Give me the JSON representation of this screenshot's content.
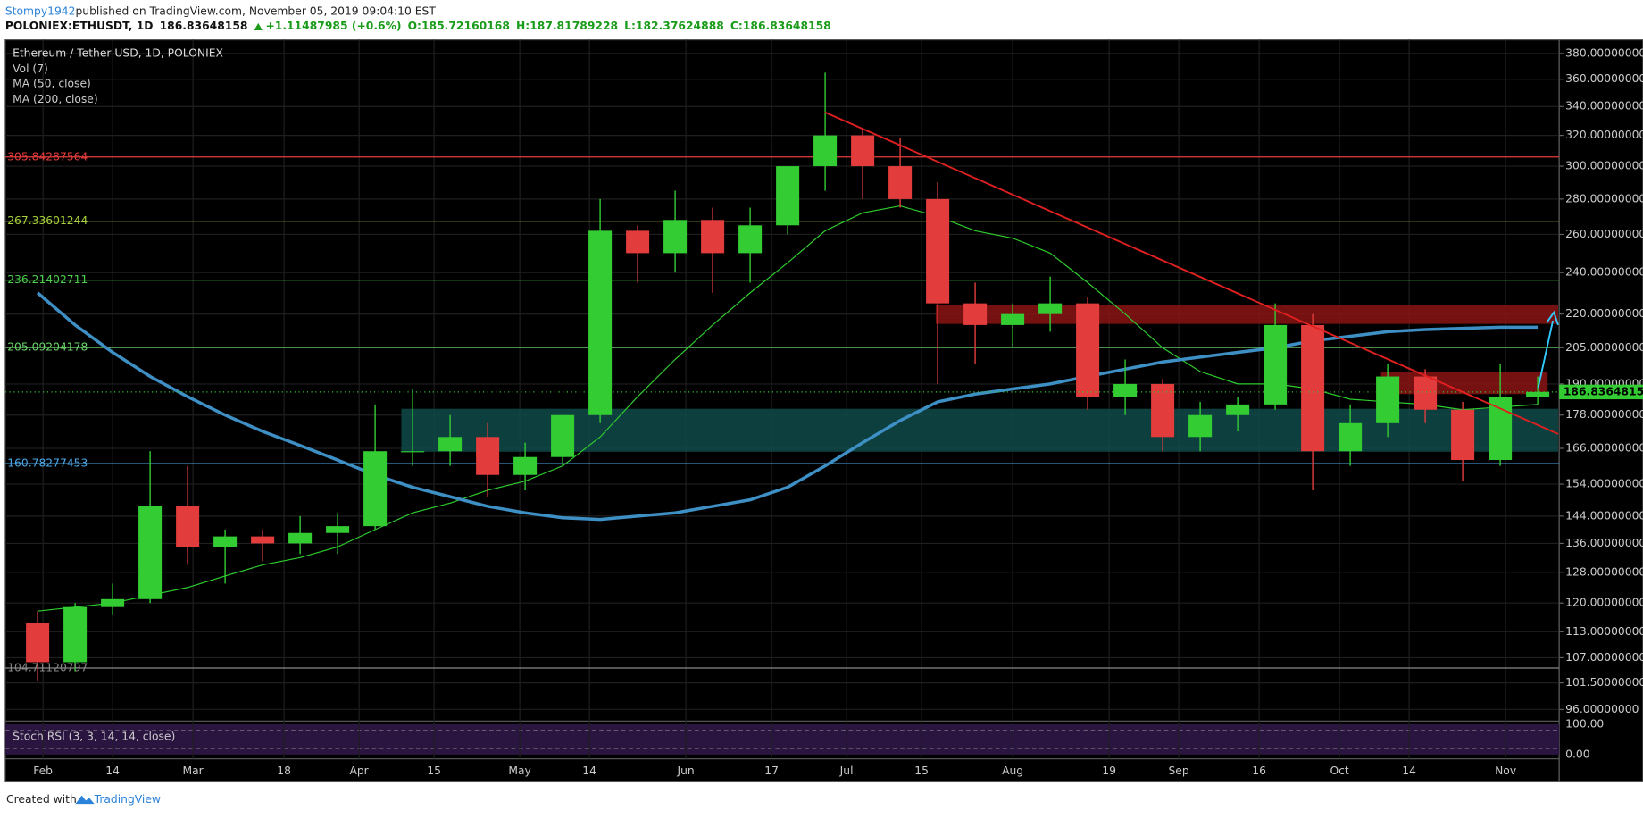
{
  "header": {
    "publisher": "Stompy1942",
    "published": "published on TradingView.com, November 05, 2019 09:04:10 EST",
    "symbol": "POLONIEX:ETHUSDT, 1D",
    "last": "186.83648158",
    "change": "+1.11487985 (+0.6%)",
    "ohlc": [
      "O:185.72160168",
      "H:187.81789228",
      "L:182.37624888",
      "C:186.83648158"
    ]
  },
  "chart_data": {
    "type": "candlestick",
    "title": "Ethereum / Tether USD, 1D, POLONIEX",
    "volume_label": "Vol (7)",
    "oscillator_label": "Stoch RSI (3, 3, 14, 14, close)",
    "oscillator_ticks": [
      "100.00",
      "0.00"
    ],
    "log_scale": true,
    "grid": true,
    "up_color": "#33cc33",
    "down_color": "#e23c3c",
    "x": [
      "01-28",
      "02-04",
      "02-11",
      "02-18",
      "02-25",
      "03-04",
      "03-11",
      "03-18",
      "03-25",
      "04-01",
      "04-08",
      "04-15",
      "04-22",
      "04-29",
      "05-06",
      "05-13",
      "05-20",
      "05-27",
      "06-03",
      "06-10",
      "06-17",
      "06-24",
      "07-01",
      "07-08",
      "07-15",
      "07-22",
      "07-29",
      "08-05",
      "08-12",
      "08-19",
      "08-26",
      "09-02",
      "09-09",
      "09-16",
      "09-23",
      "09-30",
      "10-07",
      "10-14",
      "10-21",
      "10-28",
      "11-04"
    ],
    "open": [
      115,
      106,
      119,
      121,
      147,
      135,
      138,
      136,
      139,
      141,
      165,
      165,
      170,
      157,
      163,
      178,
      262,
      250,
      268,
      250,
      265,
      300,
      320,
      300,
      280,
      225,
      215,
      220,
      225,
      185,
      190,
      170,
      178,
      182,
      215,
      165,
      175,
      193,
      180,
      162,
      185
    ],
    "high": [
      118,
      120,
      125,
      165,
      160,
      140,
      140,
      144,
      145,
      182,
      188,
      178,
      175,
      168,
      178,
      280,
      265,
      285,
      275,
      275,
      300,
      365,
      325,
      318,
      290,
      235,
      225,
      238,
      228,
      200,
      192,
      183,
      185,
      225,
      220,
      182,
      198,
      196,
      183,
      198,
      193
    ],
    "low": [
      102,
      104,
      117,
      120,
      130,
      125,
      131,
      133,
      133,
      140,
      160,
      160,
      150,
      152,
      160,
      175,
      235,
      240,
      230,
      235,
      260,
      285,
      280,
      275,
      190,
      198,
      205,
      212,
      180,
      178,
      165,
      165,
      172,
      180,
      152,
      160,
      170,
      175,
      155,
      160,
      182
    ],
    "close": [
      106,
      119,
      121,
      147,
      135,
      138,
      136,
      139,
      141,
      165,
      165,
      170,
      157,
      163,
      178,
      262,
      250,
      268,
      250,
      265,
      300,
      320,
      300,
      280,
      225,
      215,
      220,
      225,
      185,
      190,
      170,
      178,
      182,
      215,
      165,
      175,
      193,
      180,
      162,
      185,
      186.83648158
    ],
    "series": [
      {
        "name": "MA (50, close)",
        "color": "#2ecc2e",
        "width": 1,
        "values": [
          118,
          119,
          120,
          122,
          124,
          127,
          130,
          132,
          135,
          140,
          145,
          148,
          152,
          155,
          160,
          170,
          185,
          200,
          215,
          230,
          245,
          262,
          272,
          276,
          270,
          262,
          258,
          250,
          235,
          220,
          205,
          195,
          190,
          190,
          188,
          184,
          183,
          182,
          180,
          181,
          182
        ]
      },
      {
        "name": "MA (200, close)",
        "color": "#3d8fc4",
        "width": 3,
        "values": [
          230,
          215,
          203,
          193,
          185,
          178,
          172,
          167,
          162,
          157,
          153,
          150,
          147,
          145,
          143.5,
          143,
          144,
          145,
          147,
          149,
          153,
          160,
          168,
          176,
          183,
          186,
          188,
          190,
          193,
          196,
          199,
          201,
          203,
          205,
          208,
          210,
          212,
          213,
          213.5,
          214,
          214
        ]
      }
    ],
    "levels": [
      {
        "value": 305.84287564,
        "color": "#e23c3c"
      },
      {
        "value": 267.33601244,
        "color": "#a8d13a"
      },
      {
        "value": 236.21402711,
        "color": "#4ccf4c"
      },
      {
        "value": 205.09204178,
        "color": "#6ad36a"
      },
      {
        "value": 160.78277453,
        "color": "#4aa8e8"
      },
      {
        "value": 104.71120797,
        "color": "#888888"
      }
    ],
    "ylim": [
      94.1,
      389.3
    ],
    "yticks": [
      {
        "value": 380,
        "label": "380.00000000"
      },
      {
        "value": 360,
        "label": "360.00000000"
      },
      {
        "value": 340,
        "label": "340.00000000"
      },
      {
        "value": 320,
        "label": "320.00000000"
      },
      {
        "value": 300,
        "label": "300.00000000"
      },
      {
        "value": 280,
        "label": "280.00000000"
      },
      {
        "value": 260,
        "label": "260.00000000"
      },
      {
        "value": 240,
        "label": "240.00000000"
      },
      {
        "value": 220,
        "label": "220.00000000"
      },
      {
        "value": 205,
        "label": "205.00000000"
      },
      {
        "value": 190,
        "label": "190.00000000"
      },
      {
        "value": 178,
        "label": "178.00000000"
      },
      {
        "value": 166,
        "label": "166.00000000"
      },
      {
        "value": 154,
        "label": "154.00000000"
      },
      {
        "value": 144,
        "label": "144.00000000"
      },
      {
        "value": 136,
        "label": "136.00000000"
      },
      {
        "value": 128,
        "label": "128.00000000"
      },
      {
        "value": 120,
        "label": "120.00000000"
      },
      {
        "value": 113,
        "label": "113.00000000"
      },
      {
        "value": 107,
        "label": "107.00000000"
      },
      {
        "value": 101.5,
        "label": "101.50000000"
      },
      {
        "value": 96,
        "label": "96.00000000"
      }
    ],
    "xticks": [
      {
        "value": "02-01",
        "label": "Feb"
      },
      {
        "value": "02-14",
        "label": "14"
      },
      {
        "value": "03-01",
        "label": "Mar"
      },
      {
        "value": "03-18",
        "label": "18"
      },
      {
        "value": "04-01",
        "label": "Apr"
      },
      {
        "value": "04-15",
        "label": "15"
      },
      {
        "value": "05-01",
        "label": "May"
      },
      {
        "value": "05-14",
        "label": "14"
      },
      {
        "value": "06-01",
        "label": "Jun"
      },
      {
        "value": "06-17",
        "label": "17"
      },
      {
        "value": "07-01",
        "label": "Jul"
      },
      {
        "value": "07-15",
        "label": "15"
      },
      {
        "value": "08-01",
        "label": "Aug"
      },
      {
        "value": "08-19",
        "label": "19"
      },
      {
        "value": "09-01",
        "label": "Sep"
      },
      {
        "value": "09-16",
        "label": "16"
      },
      {
        "value": "10-01",
        "label": "Oct"
      },
      {
        "value": "10-14",
        "label": "14"
      },
      {
        "value": "11-01",
        "label": "Nov"
      }
    ]
  },
  "footer": {
    "created": "Created with",
    "brand": "TradingView"
  }
}
